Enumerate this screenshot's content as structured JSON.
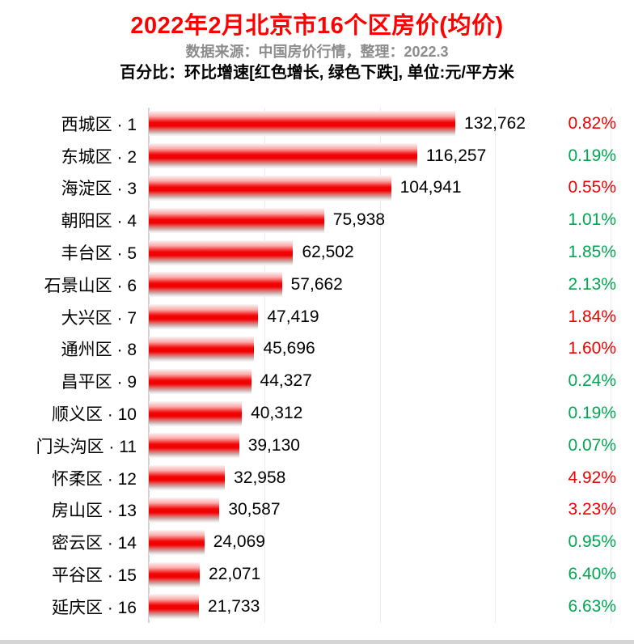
{
  "title": "2022年2月北京市16个区房价(均价)",
  "subtitle": "数据来源：中国房价行情，整理：2022.3",
  "note": "百分比：环比增速[红色增长, 绿色下跌], 单位:元/平方米",
  "unit": "元/平方米",
  "colors": {
    "title_red": "#ff0000",
    "subtitle_gray": "#8c8c8c",
    "increase_red": "#f10000",
    "decrease_green": "#00a651",
    "bar_red": "#ef0101",
    "gridline": "#ebebeb",
    "axis_line": "#d2d2d2"
  },
  "chart_data": {
    "type": "bar",
    "orientation": "horizontal",
    "title": "2022年2月北京市16个区房价(均价)",
    "xlabel": "",
    "ylabel": "",
    "xlim": [
      0,
      200000
    ],
    "gridline_interval": 50000,
    "grid": true,
    "legend": "红色增长, 绿色下跌",
    "rows": [
      {
        "district": "西城区",
        "rank": 1,
        "label": "西城区 · 1",
        "value": 132762,
        "value_label": "132,762",
        "change": "0.82%",
        "direction": "up"
      },
      {
        "district": "东城区",
        "rank": 2,
        "label": "东城区 · 2",
        "value": 116257,
        "value_label": "116,257",
        "change": "0.19%",
        "direction": "down"
      },
      {
        "district": "海淀区",
        "rank": 3,
        "label": "海淀区 · 3",
        "value": 104941,
        "value_label": "104,941",
        "change": "0.55%",
        "direction": "up"
      },
      {
        "district": "朝阳区",
        "rank": 4,
        "label": "朝阳区 · 4",
        "value": 75938,
        "value_label": "75,938",
        "change": "1.01%",
        "direction": "down"
      },
      {
        "district": "丰台区",
        "rank": 5,
        "label": "丰台区 · 5",
        "value": 62502,
        "value_label": "62,502",
        "change": "1.85%",
        "direction": "down"
      },
      {
        "district": "石景山区",
        "rank": 6,
        "label": "石景山区 · 6",
        "value": 57662,
        "value_label": "57,662",
        "change": "2.13%",
        "direction": "down"
      },
      {
        "district": "大兴区",
        "rank": 7,
        "label": "大兴区 · 7",
        "value": 47419,
        "value_label": "47,419",
        "change": "1.84%",
        "direction": "up"
      },
      {
        "district": "通州区",
        "rank": 8,
        "label": "通州区 · 8",
        "value": 45696,
        "value_label": "45,696",
        "change": "1.60%",
        "direction": "up"
      },
      {
        "district": "昌平区",
        "rank": 9,
        "label": "昌平区 · 9",
        "value": 44327,
        "value_label": "44,327",
        "change": "0.24%",
        "direction": "down"
      },
      {
        "district": "顺义区",
        "rank": 10,
        "label": "顺义区 · 10",
        "value": 40312,
        "value_label": "40,312",
        "change": "0.19%",
        "direction": "down"
      },
      {
        "district": "门头沟区",
        "rank": 11,
        "label": "门头沟区 · 11",
        "value": 39130,
        "value_label": "39,130",
        "change": "0.07%",
        "direction": "down"
      },
      {
        "district": "怀柔区",
        "rank": 12,
        "label": "怀柔区 · 12",
        "value": 32958,
        "value_label": "32,958",
        "change": "4.92%",
        "direction": "up"
      },
      {
        "district": "房山区",
        "rank": 13,
        "label": "房山区 · 13",
        "value": 30587,
        "value_label": "30,587",
        "change": "3.23%",
        "direction": "up"
      },
      {
        "district": "密云区",
        "rank": 14,
        "label": "密云区 · 14",
        "value": 24069,
        "value_label": "24,069",
        "change": "0.95%",
        "direction": "down"
      },
      {
        "district": "平谷区",
        "rank": 15,
        "label": "平谷区 · 15",
        "value": 22071,
        "value_label": "22,071",
        "change": "6.40%",
        "direction": "down"
      },
      {
        "district": "延庆区",
        "rank": 16,
        "label": "延庆区 · 16",
        "value": 21733,
        "value_label": "21,733",
        "change": "6.63%",
        "direction": "down"
      }
    ]
  }
}
